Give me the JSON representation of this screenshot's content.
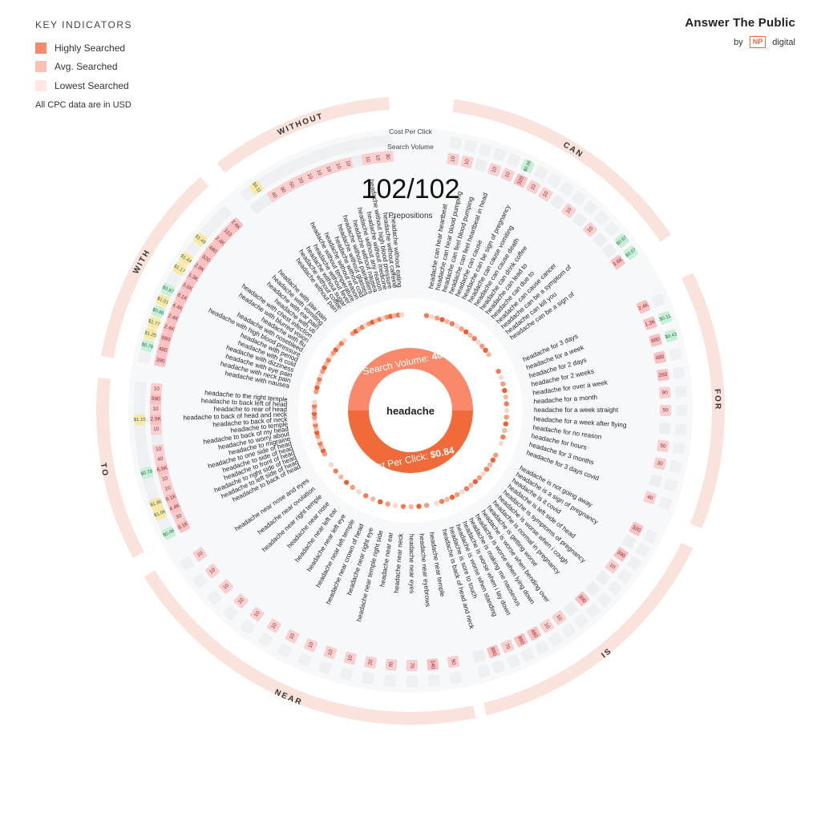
{
  "legend": {
    "title": "KEY INDICATORS",
    "items": [
      {
        "label": "Highly Searched",
        "color": "#f9896a"
      },
      {
        "label": "Avg. Searched",
        "color": "#f8c3b4"
      },
      {
        "label": "Lowest Searched",
        "color": "#fde8e3"
      }
    ],
    "cpc_note": "All CPC data are in USD"
  },
  "brand": {
    "name": "Answer The Public",
    "by": "by",
    "badge": "NP",
    "company": "digital"
  },
  "header": {
    "cpc_label": "Cost Per Click",
    "volume_label": "Search Volume",
    "count": "102/102",
    "type": "Prepositions"
  },
  "center": {
    "keyword": "headache",
    "volume_label": "Search Volume:",
    "volume_value": "40.5K",
    "cpc_label": "Cost Per Click:",
    "cpc_value": "$0.84"
  },
  "colors": {
    "accent": "#f06a3a",
    "accent_light": "#f9896a",
    "ring": "#fbe3dd",
    "high": "#f9c1c1",
    "green": "#c8f0d9",
    "yellow": "#fce8a6",
    "bubble_grey": "#f3f4f6"
  },
  "chart_data": {
    "type": "radial",
    "keyword": "headache",
    "groups": [
      {
        "name": "CAN",
        "items": [
          {
            "q": "headache can hear heartbeat",
            "vol": "10",
            "cpc": ""
          },
          {
            "q": "headache can hear blood pumping",
            "vol": "10",
            "cpc": ""
          },
          {
            "q": "headache can feel blood pumping",
            "vol": "",
            "cpc": ""
          },
          {
            "q": "headache can feel heartbeat in head",
            "vol": "10",
            "cpc": ""
          },
          {
            "q": "headache can cause",
            "vol": "10",
            "cpc": ""
          },
          {
            "q": "headache can be sign of pregnancy",
            "vol": "320",
            "cpc": "$0.95"
          },
          {
            "q": "headache can cause vomiting",
            "vol": "10",
            "cpc": ""
          },
          {
            "q": "headache can cause death",
            "vol": "10",
            "cpc": ""
          },
          {
            "q": "headache can drink coffee",
            "vol": "",
            "cpc": ""
          },
          {
            "q": "headache can lead to",
            "vol": "10",
            "cpc": ""
          },
          {
            "q": "headache can due to",
            "vol": "",
            "cpc": ""
          },
          {
            "q": "headache can cause cancer",
            "vol": "10",
            "cpc": ""
          },
          {
            "q": "headache can be a symptom of",
            "vol": "",
            "cpc": ""
          },
          {
            "q": "headache can kill you",
            "vol": "",
            "cpc": "$0.67"
          },
          {
            "q": "headache can be a sign of",
            "vol": "3.6K",
            "cpc": "$0.67"
          }
        ]
      },
      {
        "name": "FOR",
        "items": [
          {
            "q": "headache for 3 days",
            "vol": "2.4K",
            "cpc": ""
          },
          {
            "q": "headache for a week",
            "vol": "1.3K",
            "cpc": "$0.11"
          },
          {
            "q": "headache for 2 days",
            "vol": "880",
            "cpc": "$0.43"
          },
          {
            "q": "headache for 2 weeks",
            "vol": "480",
            "cpc": ""
          },
          {
            "q": "headache for over a week",
            "vol": "260",
            "cpc": ""
          },
          {
            "q": "headache for a month",
            "vol": "90",
            "cpc": ""
          },
          {
            "q": "headache for a week straight",
            "vol": "50",
            "cpc": ""
          },
          {
            "q": "headache for a week after flying",
            "vol": "",
            "cpc": ""
          },
          {
            "q": "headache for no reason",
            "vol": "50",
            "cpc": ""
          },
          {
            "q": "headache for hours",
            "vol": "30",
            "cpc": ""
          },
          {
            "q": "headache for 3 months",
            "vol": "",
            "cpc": ""
          },
          {
            "q": "headache for 3 days covid",
            "vol": "40",
            "cpc": ""
          }
        ]
      },
      {
        "name": "IS",
        "items": [
          {
            "q": "headache is not going away",
            "vol": "320",
            "cpc": ""
          },
          {
            "q": "headache is a sign of pregnancy",
            "vol": "",
            "cpc": ""
          },
          {
            "q": "headache is it covid",
            "vol": "390",
            "cpc": ""
          },
          {
            "q": "headache is left side of head",
            "vol": "10",
            "cpc": ""
          },
          {
            "q": "headache is symptoms of pregnancy",
            "vol": "",
            "cpc": ""
          },
          {
            "q": "headache is worse when i cough",
            "vol": "",
            "cpc": ""
          },
          {
            "q": "headache is normal in pregnancy",
            "vol": "390",
            "cpc": ""
          },
          {
            "q": "headache is getting worse",
            "vol": "",
            "cpc": ""
          },
          {
            "q": "headache is worse when bending over",
            "vol": "10",
            "cpc": ""
          },
          {
            "q": "headache is worse when lying down",
            "vol": "10",
            "cpc": ""
          },
          {
            "q": "headache is making me nauseous",
            "vol": "480",
            "cpc": ""
          },
          {
            "q": "headache is worse when i lay down",
            "vol": "880",
            "cpc": ""
          },
          {
            "q": "headache is worse when standing",
            "vol": "70",
            "cpc": ""
          },
          {
            "q": "headache is sore to touch",
            "vol": "880",
            "cpc": ""
          },
          {
            "q": "headache is back of head and neck",
            "vol": "",
            "cpc": ""
          }
        ]
      },
      {
        "name": "NEAR",
        "items": [
          {
            "q": "headache near temple",
            "vol": "90",
            "cpc": ""
          },
          {
            "q": "headache near eyebrows",
            "vol": "140",
            "cpc": ""
          },
          {
            "q": "headache near eyes",
            "vol": "70",
            "cpc": ""
          },
          {
            "q": "headache near neck",
            "vol": "70",
            "cpc": ""
          },
          {
            "q": "headache near ear",
            "vol": "20",
            "cpc": ""
          },
          {
            "q": "headache near temple right side",
            "vol": "10",
            "cpc": ""
          },
          {
            "q": "headache near right eye",
            "vol": "10",
            "cpc": ""
          },
          {
            "q": "headache near crown of head",
            "vol": "10",
            "cpc": ""
          },
          {
            "q": "headache near left temple",
            "vol": "10",
            "cpc": ""
          },
          {
            "q": "headache near left eye",
            "vol": "10",
            "cpc": ""
          },
          {
            "q": "headache near left ear",
            "vol": "10",
            "cpc": ""
          },
          {
            "q": "headache near nose",
            "vol": "10",
            "cpc": ""
          },
          {
            "q": "headache near right temple",
            "vol": "10",
            "cpc": ""
          },
          {
            "q": "headache near ovulation",
            "vol": "10",
            "cpc": ""
          },
          {
            "q": "headache near nose and eyes",
            "vol": "10",
            "cpc": ""
          }
        ]
      },
      {
        "name": "TO",
        "items": [
          {
            "q": "headache to back of head",
            "vol": "8.1K",
            "cpc": "$0.46"
          },
          {
            "q": "headache to left side of head",
            "vol": "30",
            "cpc": ""
          },
          {
            "q": "headache to right side of head",
            "vol": "4.4K",
            "cpc": "$1.06"
          },
          {
            "q": "headache to front of head",
            "vol": "8.1K",
            "cpc": "$1.86"
          },
          {
            "q": "headache to side of head",
            "vol": "10",
            "cpc": ""
          },
          {
            "q": "headache to one side of head",
            "vol": "10",
            "cpc": ""
          },
          {
            "q": "headache to migraine",
            "vol": "6.6K",
            "cpc": "$0.78"
          },
          {
            "q": "headache to worry about",
            "vol": "40",
            "cpc": ""
          },
          {
            "q": "headache to back of my head",
            "vol": "10",
            "cpc": ""
          },
          {
            "q": "headache to temple",
            "vol": "",
            "cpc": ""
          },
          {
            "q": "headache to back of neck",
            "vol": "10",
            "cpc": ""
          },
          {
            "q": "headache to back of head and neck",
            "vol": "2.9K",
            "cpc": "$1.15"
          },
          {
            "q": "headache to rear of head",
            "vol": "10",
            "cpc": ""
          },
          {
            "q": "headache to back left of head",
            "vol": "590",
            "cpc": ""
          },
          {
            "q": "headache to the right temple",
            "vol": "10",
            "cpc": ""
          }
        ]
      },
      {
        "name": "WITH",
        "items": [
          {
            "q": "headache with nausea",
            "vol": "390",
            "cpc": ""
          },
          {
            "q": "headache with neck pain",
            "vol": "480",
            "cpc": "$0.78"
          },
          {
            "q": "headache with eye pain",
            "vol": "880",
            "cpc": "$1.25"
          },
          {
            "q": "headache with dizziness",
            "vol": "2.4K",
            "cpc": "$1.77"
          },
          {
            "q": "headache with a cold",
            "vol": "2.4K",
            "cpc": "$0.86"
          },
          {
            "q": "headache with period",
            "vol": "4.4K",
            "cpc": "$1.01"
          },
          {
            "q": "headache with high blood pressure",
            "vol": "8.1K",
            "cpc": "$0.87"
          },
          {
            "q": "headache with nosebleed",
            "vol": "3.6K",
            "cpc": ""
          },
          {
            "q": "headache with flu",
            "vol": "1.3K",
            "cpc": "$1.17"
          },
          {
            "q": "headache with blurred vision",
            "vol": "2.9K",
            "cpc": "$1.44"
          },
          {
            "q": "headache with chest infection",
            "vol": "320",
            "cpc": ""
          },
          {
            "q": "headache with uti",
            "vol": "480",
            "cpc": "$1.49"
          },
          {
            "q": "headache with ear pain",
            "vol": "2.4K",
            "cpc": ""
          },
          {
            "q": "headache with vomiting",
            "vol": "110",
            "cpc": ""
          },
          {
            "q": "headache with jaw pain",
            "vol": "2.4K",
            "cpc": ""
          }
        ]
      },
      {
        "name": "WITHOUT",
        "items": [
          {
            "q": "headache without pain",
            "vol": "",
            "cpc": ""
          },
          {
            "q": "headache without coffee",
            "vol": "",
            "cpc": "$4.11"
          },
          {
            "q": "headache without sugar",
            "vol": "40",
            "cpc": ""
          },
          {
            "q": "headache without fever",
            "vol": "90",
            "cpc": ""
          },
          {
            "q": "headache without temperature",
            "vol": "50",
            "cpc": ""
          },
          {
            "q": "headache without reason",
            "vol": "20",
            "cpc": ""
          },
          {
            "q": "headache without cold",
            "vol": "10",
            "cpc": ""
          },
          {
            "q": "headache without glasses",
            "vol": "10",
            "cpc": ""
          },
          {
            "q": "headache without painkillers",
            "vol": "10",
            "cpc": ""
          },
          {
            "q": "headache without nausea",
            "vol": "10",
            "cpc": ""
          },
          {
            "q": "headache without any reason",
            "vol": "10",
            "cpc": ""
          },
          {
            "q": "headache without medicine",
            "vol": "",
            "cpc": ""
          },
          {
            "q": "headache without high blood pressure",
            "vol": "10",
            "cpc": ""
          },
          {
            "q": "headache without caffeine",
            "vol": "10",
            "cpc": ""
          },
          {
            "q": "headache without eating",
            "vol": "30",
            "cpc": ""
          }
        ]
      }
    ],
    "group_arcs_deg": [
      [
        8,
        56
      ],
      [
        64,
        112
      ],
      [
        116,
        166
      ],
      [
        168,
        238
      ],
      [
        242,
        276
      ],
      [
        280,
        318
      ],
      [
        322,
        356
      ]
    ]
  }
}
